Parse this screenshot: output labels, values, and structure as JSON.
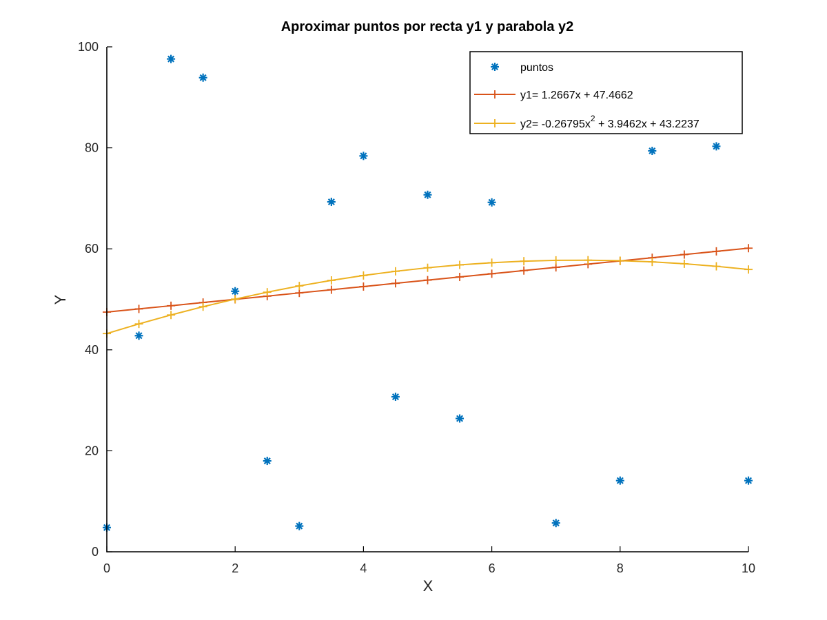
{
  "chart_data": {
    "type": "line",
    "title": "Aproximar puntos por recta y1 y parabola y2",
    "xlabel": "X",
    "ylabel": "Y",
    "xlim": [
      0,
      10
    ],
    "ylim": [
      0,
      100
    ],
    "xticks": [
      0,
      2,
      4,
      6,
      8,
      10
    ],
    "yticks": [
      0,
      20,
      40,
      60,
      80,
      100
    ],
    "grid": false,
    "legend_position": "top-right",
    "series": [
      {
        "name": "puntos",
        "kind": "scatter",
        "marker": "asterisk",
        "color": "#0072BD",
        "x": [
          0,
          0.5,
          1,
          1.5,
          2,
          2.5,
          3,
          3.5,
          4,
          4.5,
          5,
          5.5,
          6,
          7,
          8,
          8.5,
          9.5,
          10
        ],
        "y": [
          4.8,
          42.8,
          97.6,
          93.9,
          51.6,
          18,
          5.1,
          69.3,
          78.4,
          30.7,
          70.7,
          26.4,
          69.2,
          5.7,
          14.1,
          79.4,
          80.3,
          14.1
        ]
      },
      {
        "name": "y1= 1.2667x + 47.4662",
        "kind": "line",
        "marker": "plus",
        "color": "#D95319",
        "x": [
          0,
          0.5,
          1,
          1.5,
          2,
          2.5,
          3,
          3.5,
          4,
          4.5,
          5,
          5.5,
          6,
          6.5,
          7,
          7.5,
          8,
          8.5,
          9,
          9.5,
          10
        ],
        "y": [
          47.47,
          48.1,
          48.73,
          49.37,
          50.0,
          50.63,
          51.27,
          51.9,
          52.53,
          53.17,
          53.8,
          54.43,
          55.07,
          55.7,
          56.33,
          56.97,
          57.6,
          58.23,
          58.87,
          59.5,
          60.13
        ]
      },
      {
        "name": "y2= -0.26795x^2 + 3.9462x + 43.2237",
        "kind": "line",
        "marker": "plus",
        "color": "#EDB120",
        "x": [
          0,
          0.5,
          1,
          1.5,
          2,
          2.5,
          3,
          3.5,
          4,
          4.5,
          5,
          5.5,
          6,
          6.5,
          7,
          7.5,
          8,
          8.5,
          9,
          9.5,
          10
        ],
        "y": [
          43.22,
          45.13,
          46.9,
          48.54,
          50.04,
          51.41,
          52.65,
          53.75,
          54.72,
          55.55,
          56.25,
          56.82,
          57.25,
          57.55,
          57.72,
          57.75,
          57.65,
          57.41,
          57.04,
          56.54,
          55.91
        ]
      }
    ]
  },
  "legend": {
    "entries": [
      {
        "text": "puntos"
      },
      {
        "text": "y1= 1.2667x + 47.4662"
      },
      {
        "text_parts": [
          "y2= -0.26795x",
          "2",
          " + 3.9462x + 43.2237"
        ]
      }
    ]
  }
}
